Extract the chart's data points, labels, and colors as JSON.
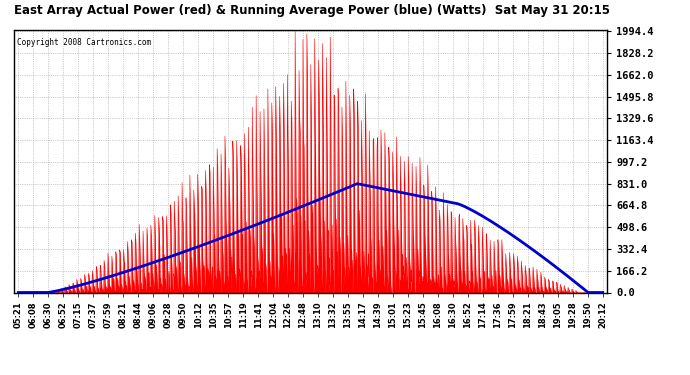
{
  "title": "East Array Actual Power (red) & Running Average Power (blue) (Watts)  Sat May 31 20:15",
  "copyright": "Copyright 2008 Cartronics.com",
  "yticks": [
    0.0,
    166.2,
    332.4,
    498.6,
    664.8,
    831.0,
    997.2,
    1163.4,
    1329.6,
    1495.8,
    1662.0,
    1828.2,
    1994.4
  ],
  "ymax": 1994.4,
  "ymin": 0.0,
  "background_color": "#ffffff",
  "grid_color": "#888888",
  "actual_color": "#ff0000",
  "avg_color": "#0000cc",
  "x_labels": [
    "05:21",
    "06:08",
    "06:30",
    "06:52",
    "07:15",
    "07:37",
    "07:59",
    "08:21",
    "08:44",
    "09:06",
    "09:28",
    "09:50",
    "10:12",
    "10:35",
    "10:57",
    "11:19",
    "11:41",
    "12:04",
    "12:26",
    "12:48",
    "13:10",
    "13:32",
    "13:55",
    "14:17",
    "14:39",
    "15:01",
    "15:23",
    "15:45",
    "16:08",
    "16:30",
    "16:52",
    "17:14",
    "17:36",
    "17:59",
    "18:21",
    "18:43",
    "19:05",
    "19:28",
    "19:50",
    "20:12"
  ],
  "peak_avg": 831.0,
  "peak_actual": 1994.4,
  "figsize": [
    6.9,
    3.75
  ],
  "dpi": 100
}
